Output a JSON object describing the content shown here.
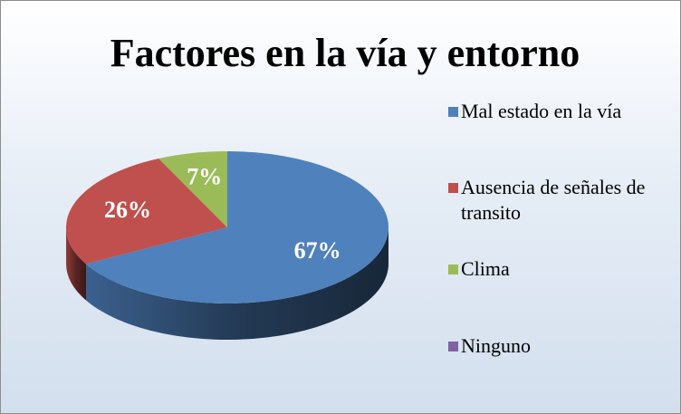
{
  "chart_data": {
    "type": "pie",
    "title": "Factores en la vía y entorno",
    "categories": [
      "Mal estado en la vía",
      "Ausencia de señales de transito",
      "Clima",
      "Ninguno"
    ],
    "values": [
      67,
      26,
      7,
      0
    ],
    "value_labels": [
      "67%",
      "26%",
      "7%",
      null
    ],
    "colors": [
      "#4f81bd",
      "#c0504d",
      "#9bbb59",
      "#8064a2"
    ],
    "legend": "right"
  }
}
